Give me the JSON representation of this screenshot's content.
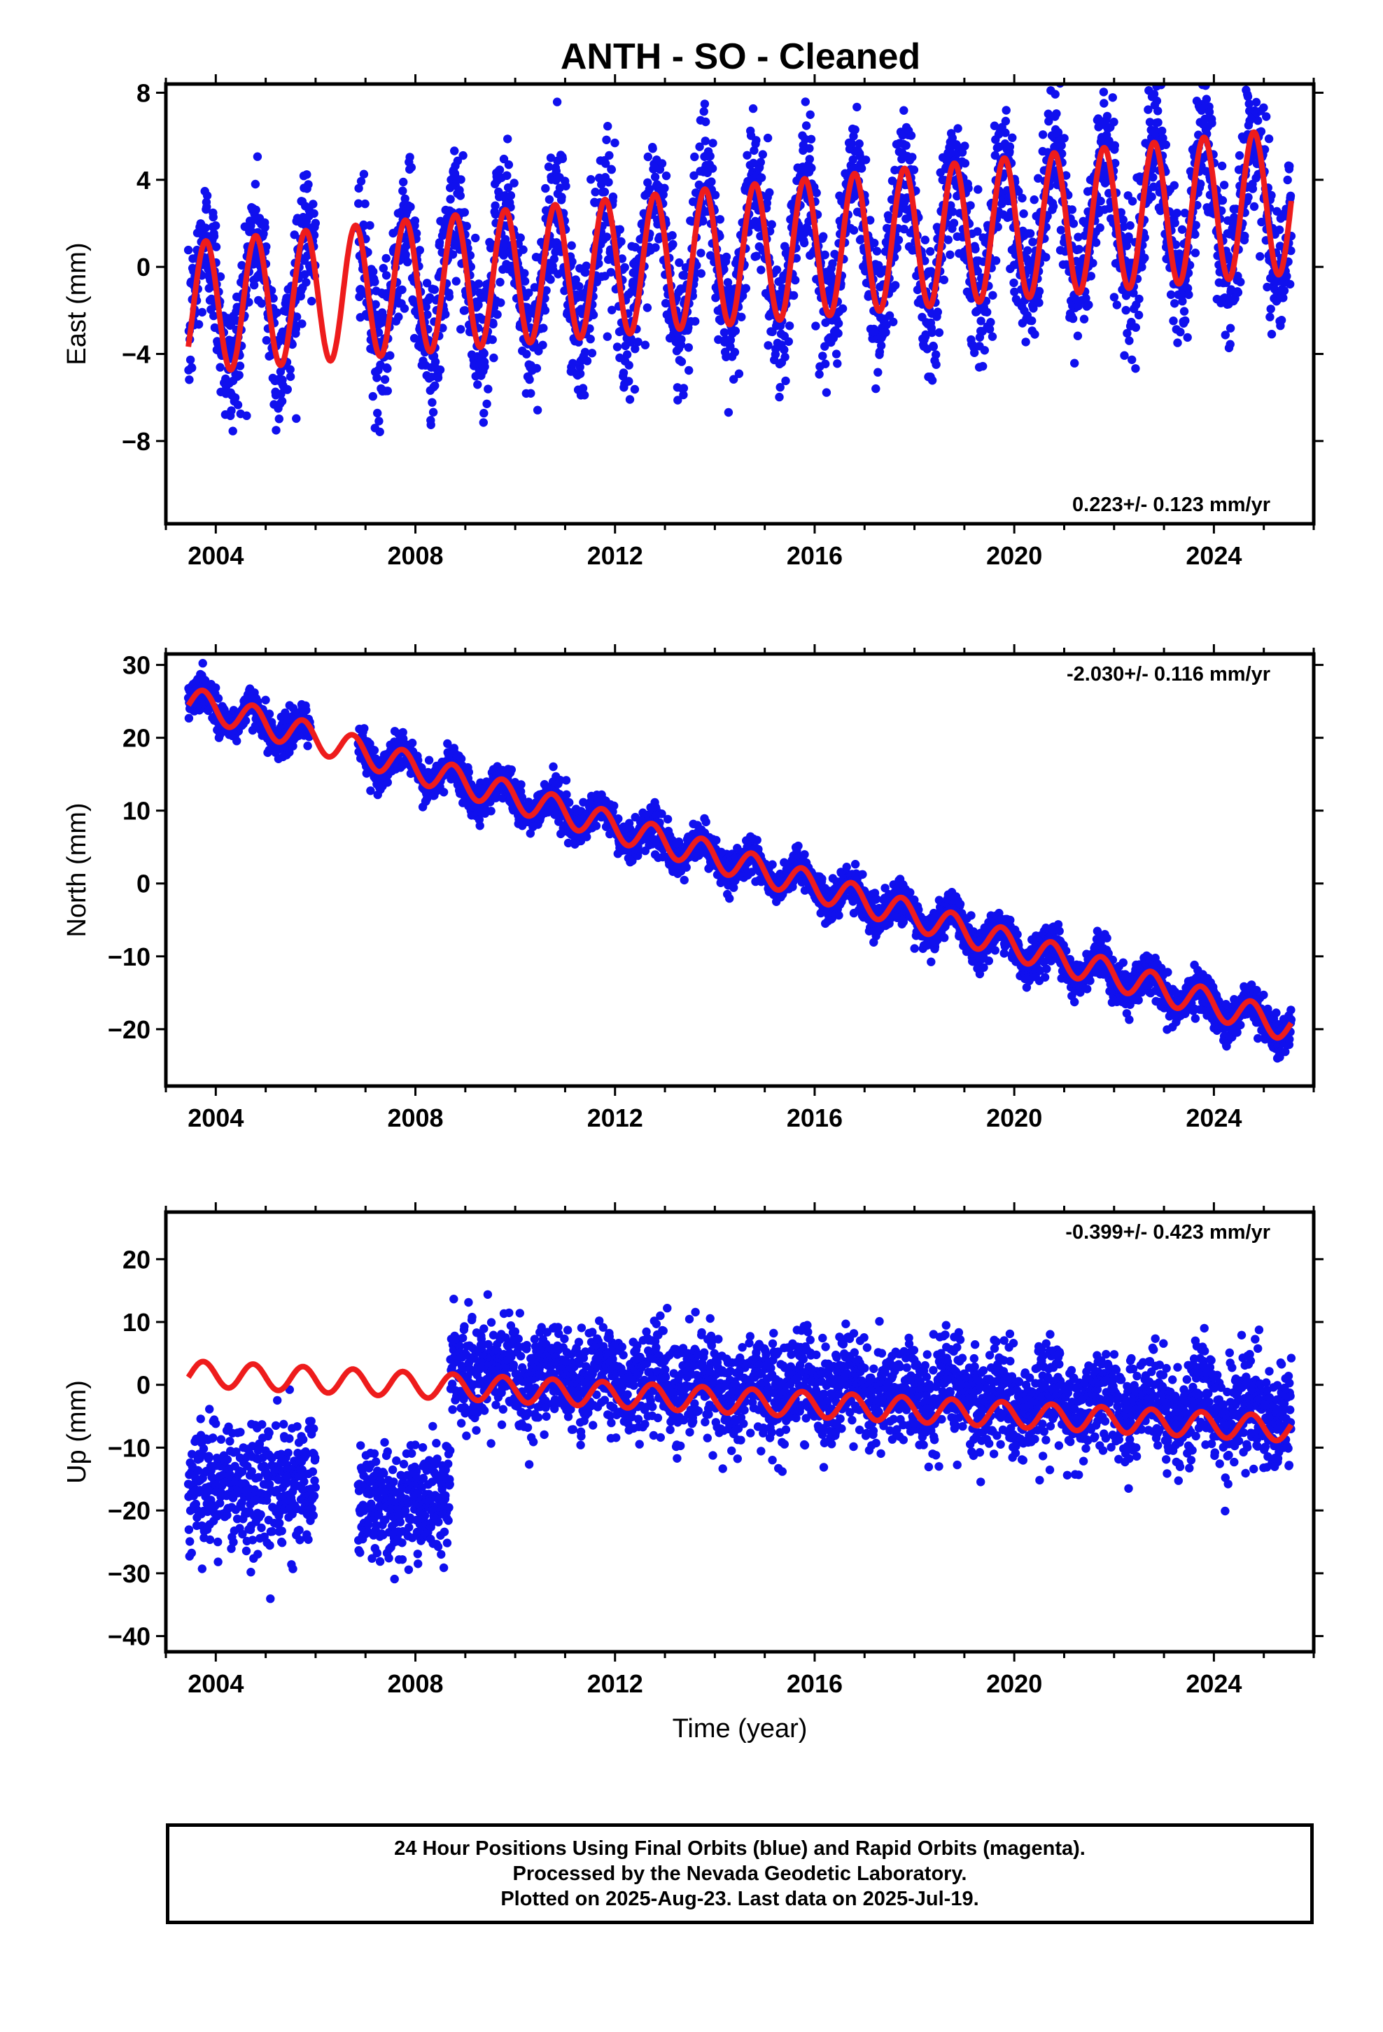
{
  "title": "ANTH  - SO - Cleaned",
  "footer": {
    "lines": [
      "24 Hour Positions Using Final Orbits (blue) and Rapid Orbits (magenta).",
      "Processed by the Nevada Geodetic Laboratory.",
      "Plotted on 2025-Aug-23. Last data on 2025-Jul-19."
    ]
  },
  "colors": {
    "data_points": "#1010ee",
    "model_fit": "#ee1c1c",
    "frame": "#000000"
  },
  "chart_data": [
    {
      "type": "scatter",
      "component": "East",
      "ylabel": "East (mm)",
      "xlabel": "",
      "xlim": [
        2003.0,
        2026.0
      ],
      "ylim": [
        -11.8,
        8.4
      ],
      "xticks": [
        2004,
        2008,
        2012,
        2016,
        2020,
        2024
      ],
      "yticks": [
        8,
        4,
        0,
        -4,
        -8
      ],
      "rate_text": "0.223+/- 0.123 mm/yr",
      "rate_position": "bottom-right",
      "data_range": [
        2003.45,
        2025.55
      ],
      "gaps": [
        [
          2006.0,
          2006.85
        ]
      ],
      "model": {
        "start": 2003.45,
        "end": 2025.55,
        "offset": -2.0,
        "trend_mm_per_yr": 0.223,
        "annual_amplitude": 3.0,
        "annual_phase": 0.55,
        "amplitude_growth": 0.005
      },
      "scatter_sigma": 1.6
    },
    {
      "type": "scatter",
      "component": "North",
      "ylabel": "North (mm)",
      "xlabel": "",
      "xlim": [
        2003.0,
        2026.0
      ],
      "ylim": [
        -27.8,
        31.5
      ],
      "xticks": [
        2004,
        2008,
        2012,
        2016,
        2020,
        2024
      ],
      "yticks": [
        30,
        20,
        10,
        0,
        -10,
        -20
      ],
      "rate_text": "-2.030+/- 0.116 mm/yr",
      "rate_position": "top-right",
      "data_range": [
        2003.45,
        2025.55
      ],
      "gaps": [
        [
          2005.9,
          2006.85
        ]
      ],
      "model": {
        "start": 2003.45,
        "end": 2025.55,
        "offset": 26.0,
        "trend_mm_per_yr": -2.03,
        "annual_amplitude": 2.0,
        "annual_phase": 0.5,
        "amplitude_growth": 0.0
      },
      "scatter_sigma": 1.3
    },
    {
      "type": "scatter",
      "component": "Up",
      "ylabel": "Up (mm)",
      "xlabel": "Time (year)",
      "xlim": [
        2003.0,
        2026.0
      ],
      "ylim": [
        -42.5,
        27.5
      ],
      "xticks": [
        2004,
        2008,
        2012,
        2016,
        2020,
        2024
      ],
      "yticks": [
        20,
        10,
        0,
        -10,
        -20,
        -30,
        -40
      ],
      "rate_text": "-0.399+/- 0.423 mm/yr",
      "rate_position": "top-right",
      "data_range": [
        2003.45,
        2025.55
      ],
      "gaps": [
        [
          2006.0,
          2006.85
        ]
      ],
      "early_segments": [
        {
          "start": 2003.45,
          "end": 2006.0,
          "mean": -16.0,
          "sigma": 5.0
        },
        {
          "start": 2006.85,
          "end": 2008.7,
          "mean": -19.0,
          "sigma": 4.5
        }
      ],
      "model": {
        "start": 2003.45,
        "end": 2025.55,
        "offset": 2.0,
        "trend_mm_per_yr": -0.399,
        "annual_amplitude": 2.0,
        "annual_phase": 0.5,
        "amplitude_growth": 0.0
      },
      "scatter_sigma": 4.0
    }
  ]
}
